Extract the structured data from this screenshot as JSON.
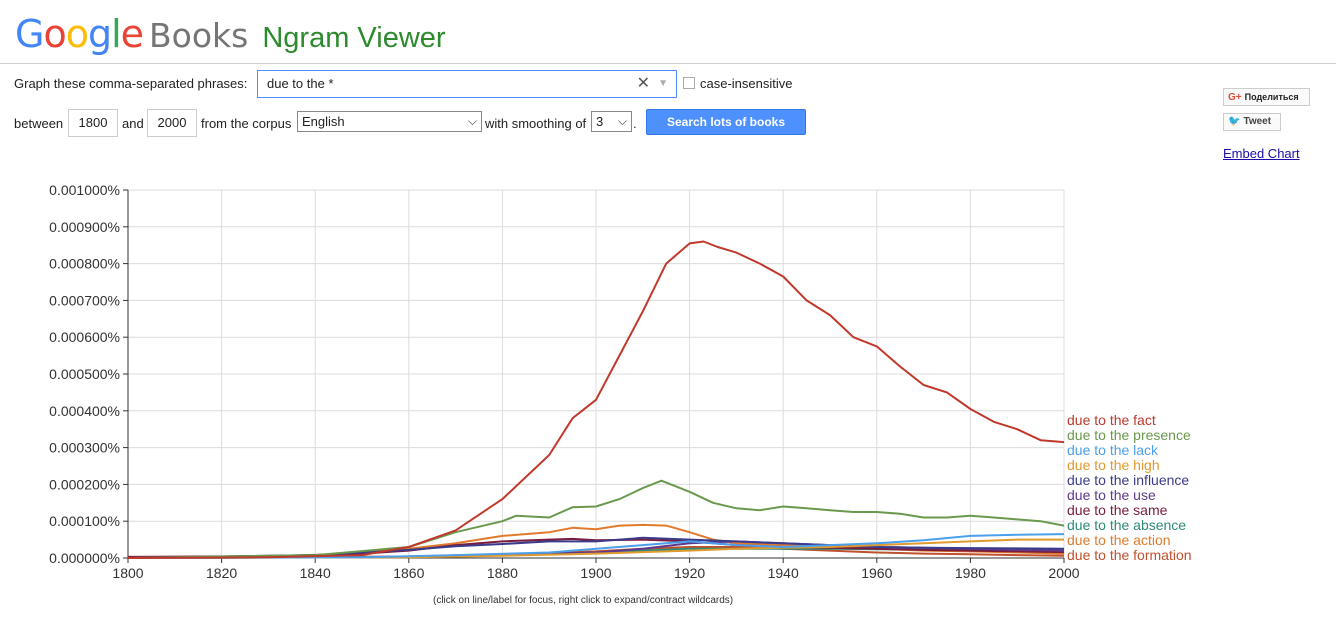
{
  "header": {
    "logo_google": [
      "G",
      "o",
      "o",
      "g",
      "l",
      "e"
    ],
    "logo_colors": [
      "#4285f4",
      "#ea4335",
      "#fbbc05",
      "#4285f4",
      "#34a853",
      "#ea4335"
    ],
    "logo_books": "Books",
    "app_title": "Ngram Viewer"
  },
  "form": {
    "phrases_label": "Graph these comma-separated phrases:",
    "query_value": "due to the *",
    "clear_symbol": "✕",
    "case_label": "case-insensitive",
    "between_label": "between",
    "start_year": "1800",
    "and_label": "and",
    "end_year": "2000",
    "corpus_label": "from the corpus",
    "corpus_value": "English",
    "smoothing_label": "with smoothing of",
    "smoothing_value": "3",
    "period": ".",
    "search_button": "Search lots of books"
  },
  "share": {
    "gplus_label": "Поделиться",
    "gplus_icon": "G+",
    "tweet_label": "Tweet",
    "embed_label": "Embed Chart"
  },
  "footer_note": "(click on line/label for focus, right click to expand/contract wildcards)",
  "chart_data": {
    "type": "line",
    "xlim": [
      1800,
      2000
    ],
    "ylim": [
      0,
      0.001
    ],
    "x_ticks": [
      "1800",
      "1820",
      "1840",
      "1860",
      "1880",
      "1900",
      "1920",
      "1940",
      "1960",
      "1980",
      "2000"
    ],
    "y_ticks": [
      "0.000000%",
      "0.000100%",
      "0.000200%",
      "0.000300%",
      "0.000400%",
      "0.000500%",
      "0.000600%",
      "0.000700%",
      "0.000800%",
      "0.000900%",
      "0.001000%"
    ],
    "grid": true,
    "legend_position": "right",
    "series": [
      {
        "name": "due to the fact",
        "color": "#c0392b",
        "points": [
          [
            1800,
            0
          ],
          [
            1830,
            2e-06
          ],
          [
            1850,
            8e-06
          ],
          [
            1860,
            3e-05
          ],
          [
            1870,
            7.5e-05
          ],
          [
            1880,
            0.00016
          ],
          [
            1890,
            0.00028
          ],
          [
            1895,
            0.00038
          ],
          [
            1900,
            0.00043
          ],
          [
            1905,
            0.00055
          ],
          [
            1910,
            0.00067
          ],
          [
            1915,
            0.0008
          ],
          [
            1920,
            0.000855
          ],
          [
            1923,
            0.00086
          ],
          [
            1926,
            0.000845
          ],
          [
            1930,
            0.00083
          ],
          [
            1935,
            0.0008
          ],
          [
            1940,
            0.000765
          ],
          [
            1945,
            0.0007
          ],
          [
            1950,
            0.00066
          ],
          [
            1955,
            0.0006
          ],
          [
            1960,
            0.000575
          ],
          [
            1965,
            0.00052
          ],
          [
            1970,
            0.00047
          ],
          [
            1975,
            0.00045
          ],
          [
            1980,
            0.000405
          ],
          [
            1985,
            0.00037
          ],
          [
            1990,
            0.00035
          ],
          [
            1995,
            0.00032
          ],
          [
            2000,
            0.000315
          ]
        ]
      },
      {
        "name": "due to the presence",
        "color": "#6a994e",
        "points": [
          [
            1800,
            0
          ],
          [
            1840,
            8e-06
          ],
          [
            1860,
            3e-05
          ],
          [
            1870,
            7e-05
          ],
          [
            1880,
            0.0001
          ],
          [
            1883,
            0.000115
          ],
          [
            1890,
            0.00011
          ],
          [
            1895,
            0.000138
          ],
          [
            1900,
            0.00014
          ],
          [
            1905,
            0.00016
          ],
          [
            1910,
            0.00019
          ],
          [
            1914,
            0.00021
          ],
          [
            1920,
            0.00018
          ],
          [
            1925,
            0.00015
          ],
          [
            1930,
            0.000135
          ],
          [
            1935,
            0.00013
          ],
          [
            1940,
            0.00014
          ],
          [
            1945,
            0.000135
          ],
          [
            1950,
            0.00013
          ],
          [
            1955,
            0.000125
          ],
          [
            1960,
            0.000125
          ],
          [
            1965,
            0.00012
          ],
          [
            1970,
            0.00011
          ],
          [
            1975,
            0.00011
          ],
          [
            1980,
            0.000115
          ],
          [
            1985,
            0.00011
          ],
          [
            1990,
            0.000105
          ],
          [
            1995,
            0.0001
          ],
          [
            2000,
            8.8e-05
          ]
        ]
      },
      {
        "name": "due to the lack",
        "color": "#4c9fea",
        "points": [
          [
            1800,
            0
          ],
          [
            1850,
            2e-06
          ],
          [
            1870,
            8e-06
          ],
          [
            1890,
            1.5e-05
          ],
          [
            1910,
            3.5e-05
          ],
          [
            1920,
            4.5e-05
          ],
          [
            1930,
            3.5e-05
          ],
          [
            1940,
            3e-05
          ],
          [
            1950,
            3.5e-05
          ],
          [
            1960,
            4e-05
          ],
          [
            1970,
            4.8e-05
          ],
          [
            1980,
            6e-05
          ],
          [
            1990,
            6.3e-05
          ],
          [
            2000,
            6.5e-05
          ]
        ]
      },
      {
        "name": "due to the high",
        "color": "#e09a2e",
        "points": [
          [
            1800,
            0
          ],
          [
            1860,
            2e-06
          ],
          [
            1880,
            6e-06
          ],
          [
            1900,
            1.2e-05
          ],
          [
            1920,
            2e-05
          ],
          [
            1930,
            2.5e-05
          ],
          [
            1940,
            2.8e-05
          ],
          [
            1950,
            3e-05
          ],
          [
            1960,
            3.5e-05
          ],
          [
            1970,
            4e-05
          ],
          [
            1980,
            4.5e-05
          ],
          [
            1990,
            5e-05
          ],
          [
            2000,
            5e-05
          ]
        ]
      },
      {
        "name": "due to the influence",
        "color": "#3b3b8c",
        "points": [
          [
            1800,
            0
          ],
          [
            1840,
            8e-06
          ],
          [
            1860,
            2.2e-05
          ],
          [
            1870,
            3.2e-05
          ],
          [
            1880,
            3.8e-05
          ],
          [
            1890,
            4.5e-05
          ],
          [
            1900,
            4.5e-05
          ],
          [
            1910,
            5.5e-05
          ],
          [
            1920,
            5e-05
          ],
          [
            1930,
            4.5e-05
          ],
          [
            1940,
            4e-05
          ],
          [
            1950,
            3.5e-05
          ],
          [
            1960,
            3e-05
          ],
          [
            1970,
            2.8e-05
          ],
          [
            1980,
            2.7e-05
          ],
          [
            1990,
            2.6e-05
          ],
          [
            2000,
            2.5e-05
          ]
        ]
      },
      {
        "name": "due to the use",
        "color": "#5e3a8c",
        "points": [
          [
            1800,
            0
          ],
          [
            1860,
            3e-06
          ],
          [
            1880,
            1e-05
          ],
          [
            1900,
            1.5e-05
          ],
          [
            1910,
            2.5e-05
          ],
          [
            1920,
            4e-05
          ],
          [
            1930,
            4.5e-05
          ],
          [
            1940,
            4e-05
          ],
          [
            1950,
            3.5e-05
          ],
          [
            1960,
            3e-05
          ],
          [
            1970,
            2.8e-05
          ],
          [
            1980,
            2.5e-05
          ],
          [
            1990,
            2.2e-05
          ],
          [
            2000,
            2e-05
          ]
        ]
      },
      {
        "name": "due to the same",
        "color": "#7a1c3c",
        "points": [
          [
            1800,
            3e-06
          ],
          [
            1830,
            5e-06
          ],
          [
            1850,
            1.2e-05
          ],
          [
            1860,
            2e-05
          ],
          [
            1870,
            3.5e-05
          ],
          [
            1880,
            4.5e-05
          ],
          [
            1890,
            5e-05
          ],
          [
            1895,
            5.2e-05
          ],
          [
            1900,
            4.8e-05
          ],
          [
            1910,
            5e-05
          ],
          [
            1920,
            4.5e-05
          ],
          [
            1930,
            3.5e-05
          ],
          [
            1940,
            3e-05
          ],
          [
            1950,
            2.8e-05
          ],
          [
            1960,
            2.5e-05
          ],
          [
            1970,
            2.2e-05
          ],
          [
            1980,
            2e-05
          ],
          [
            1990,
            1.8e-05
          ],
          [
            2000,
            1.6e-05
          ]
        ]
      },
      {
        "name": "due to the absence",
        "color": "#2e8b7a",
        "points": [
          [
            1800,
            0
          ],
          [
            1860,
            3e-06
          ],
          [
            1880,
            8e-06
          ],
          [
            1900,
            1.5e-05
          ],
          [
            1910,
            2e-05
          ],
          [
            1920,
            2.5e-05
          ],
          [
            1930,
            2.5e-05
          ],
          [
            1940,
            2.5e-05
          ],
          [
            1950,
            2.5e-05
          ],
          [
            1960,
            2.4e-05
          ],
          [
            1970,
            2.3e-05
          ],
          [
            1980,
            2.2e-05
          ],
          [
            1990,
            2.1e-05
          ],
          [
            2000,
            2e-05
          ]
        ]
      },
      {
        "name": "due to the action",
        "color": "#e07b2e",
        "points": [
          [
            1800,
            0
          ],
          [
            1840,
            8e-06
          ],
          [
            1860,
            2.5e-05
          ],
          [
            1870,
            4e-05
          ],
          [
            1880,
            6e-05
          ],
          [
            1890,
            7e-05
          ],
          [
            1895,
            8.2e-05
          ],
          [
            1900,
            7.8e-05
          ],
          [
            1905,
            8.8e-05
          ],
          [
            1910,
            9e-05
          ],
          [
            1915,
            8.8e-05
          ],
          [
            1920,
            7e-05
          ],
          [
            1925,
            5e-05
          ],
          [
            1930,
            4e-05
          ],
          [
            1940,
            3.5e-05
          ],
          [
            1950,
            3e-05
          ],
          [
            1960,
            2.5e-05
          ],
          [
            1970,
            2e-05
          ],
          [
            1980,
            1.8e-05
          ],
          [
            1990,
            1.5e-05
          ],
          [
            2000,
            1.2e-05
          ]
        ]
      },
      {
        "name": "due to the formation",
        "color": "#c0502e",
        "points": [
          [
            1800,
            0
          ],
          [
            1860,
            4e-06
          ],
          [
            1880,
            1e-05
          ],
          [
            1900,
            1.8e-05
          ],
          [
            1910,
            2.5e-05
          ],
          [
            1920,
            3e-05
          ],
          [
            1930,
            3e-05
          ],
          [
            1940,
            2.5e-05
          ],
          [
            1950,
            2e-05
          ],
          [
            1960,
            1.5e-05
          ],
          [
            1970,
            1.2e-05
          ],
          [
            1980,
            1e-05
          ],
          [
            1990,
            8e-06
          ],
          [
            2000,
            6e-06
          ]
        ]
      }
    ]
  }
}
